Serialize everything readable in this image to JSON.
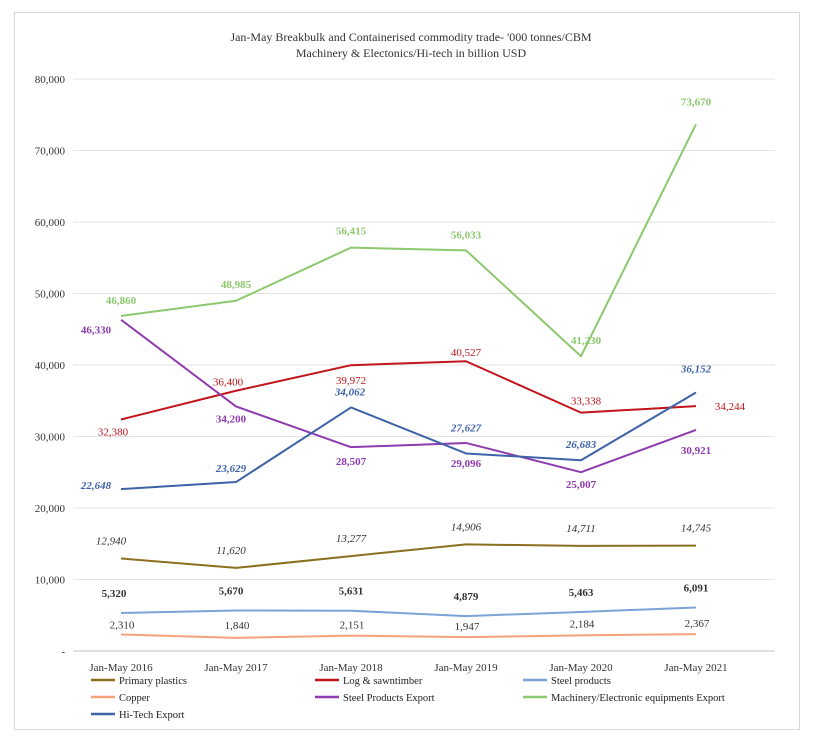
{
  "chart_data": {
    "type": "line",
    "title_lines": [
      "Jan-May Breakbulk and Containerised commodity trade- '000 tonnes/CBM",
      "Machinery & Electonics/Hi-tech in billion USD"
    ],
    "categories": [
      "Jan-May 2016",
      "Jan-May 2017",
      "Jan-May 2018",
      "Jan-May 2019",
      "Jan-May 2020",
      "Jan-May 2021"
    ],
    "ylim": [
      0,
      80000
    ],
    "yticks": [
      {
        "value": 0,
        "label": "-"
      },
      {
        "value": 10000,
        "label": "10,000"
      },
      {
        "value": 20000,
        "label": "20,000"
      },
      {
        "value": 30000,
        "label": "30,000"
      },
      {
        "value": 40000,
        "label": "40,000"
      },
      {
        "value": 50000,
        "label": "50,000"
      },
      {
        "value": 60000,
        "label": "60,000"
      },
      {
        "value": 70000,
        "label": "70,000"
      },
      {
        "value": 80000,
        "label": "80,000"
      }
    ],
    "grid": true,
    "legend_position": "bottom",
    "series": [
      {
        "name": "Primary plastics",
        "key": "primary-plastics",
        "color": "#8B6F1E",
        "label_style": "italic",
        "values": [
          12940,
          11620,
          13277,
          14906,
          14711,
          14745
        ],
        "labels": [
          "12,940",
          "11,620",
          "13,277",
          "14,906",
          "14,711",
          "14,745"
        ]
      },
      {
        "name": "Log & sawntimber",
        "key": "log-sawntimber",
        "color": "#C0151B",
        "label_style": "normal",
        "values": [
          32380,
          36400,
          39972,
          40527,
          33338,
          34244
        ],
        "labels": [
          "32,380",
          "36,400",
          "39,972",
          "40,527",
          "33,338",
          "34,244"
        ]
      },
      {
        "name": "Steel products",
        "key": "steel-products",
        "color": "#7BA3D6",
        "label_style": "bold",
        "values": [
          5320,
          5670,
          5631,
          4879,
          5463,
          6091
        ],
        "labels": [
          "5,320",
          "5,670",
          "5,631",
          "4,879",
          "5,463",
          "6,091"
        ]
      },
      {
        "name": "Copper",
        "key": "copper",
        "color": "#F4A27A",
        "label_style": "normal",
        "values": [
          2310,
          1840,
          2151,
          1947,
          2184,
          2367
        ],
        "labels": [
          "2,310",
          "1,840",
          "2,151",
          "1,947",
          "2,184",
          "2,367"
        ]
      },
      {
        "name": "Steel Products Export",
        "key": "steel-products-export",
        "color": "#8E3BB0",
        "label_style": "bold",
        "values": [
          46330,
          34200,
          28507,
          29096,
          25007,
          30921
        ],
        "labels": [
          "46,330",
          "34,200",
          "28,507",
          "29,096",
          "25,007",
          "30,921"
        ]
      },
      {
        "name": "Machinery/Electronic equipments Export",
        "key": "machinery-electronic-export",
        "color": "#8CC86E",
        "label_style": "bold",
        "values": [
          46860,
          48985,
          56415,
          56033,
          41230,
          73670
        ],
        "labels": [
          "46,860",
          "48,985",
          "56,415",
          "56,033",
          "41,230",
          "73,670"
        ]
      },
      {
        "name": "Hi-Tech Export",
        "key": "hi-tech-export",
        "color": "#3E62A8",
        "label_style": "bold-italic",
        "values": [
          22648,
          23629,
          34062,
          27627,
          26683,
          36152
        ],
        "labels": [
          "22,648",
          "23,629",
          "34,062",
          "27,627",
          "26,683",
          "36,152"
        ]
      }
    ]
  }
}
